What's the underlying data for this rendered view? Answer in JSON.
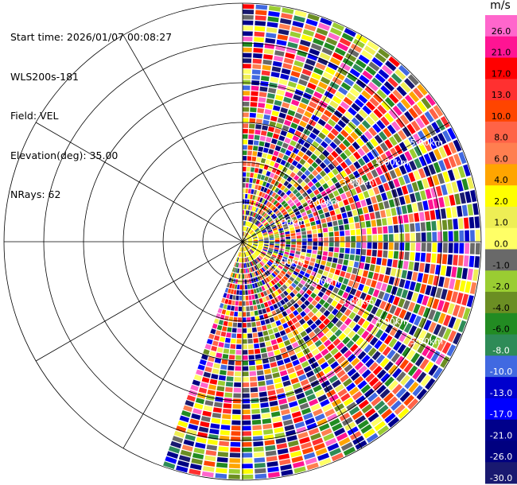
{
  "header": {
    "lines": [
      "Start time: 2026/01/07 00:08:27",
      "WLS200s-181",
      "Field: VEL",
      "Elevation(deg): 35.00",
      "NRays: 62"
    ]
  },
  "chart_data": {
    "type": "heatmap",
    "projection": "polar-ppi",
    "field": "VEL",
    "units": "m/s",
    "sector_azimuth_deg": [
      0,
      200
    ],
    "max_range_km": 6.0,
    "range_rings_km": [
      1,
      2,
      3,
      4,
      5,
      6
    ],
    "spoke_step_deg": 30,
    "range_labels": [
      "1.00km",
      "2.00km",
      "3.00km",
      "4.00km",
      "5.00km"
    ],
    "range_label_azimuths_deg": [
      60,
      120
    ],
    "n_rays": 62,
    "colorbar": {
      "title": "m/s",
      "ticks": [
        "26.0",
        "21.0",
        "17.0",
        "13.0",
        "10.0",
        "8.0",
        "6.0",
        "4.0",
        "2.0",
        "1.0",
        "0.0",
        "-1.0",
        "-2.0",
        "-4.0",
        "-6.0",
        "-8.0",
        "-10.0",
        "-13.0",
        "-17.0",
        "-21.0",
        "-26.0",
        "-30.0"
      ],
      "colors": [
        "#ff66cc",
        "#ff1493",
        "#ff0000",
        "#ff3030",
        "#ff4500",
        "#ff6347",
        "#ff7f50",
        "#ffa500",
        "#ffff00",
        "#eeee55",
        "#ffff66",
        "#696969",
        "#9acd32",
        "#6b8e23",
        "#228b22",
        "#2e8b57",
        "#4169e1",
        "#0000cd",
        "#0000ff",
        "#00008b",
        "#000080",
        "#191970"
      ]
    }
  }
}
